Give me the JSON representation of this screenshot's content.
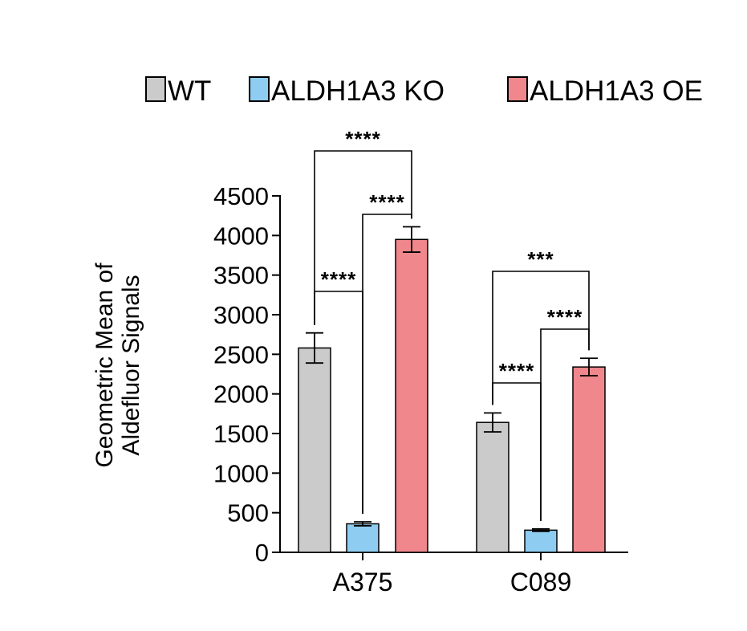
{
  "chart_data": {
    "type": "bar",
    "categories": [
      "A375",
      "C089"
    ],
    "ylabel": "Geometric Mean of\nAldefluor Signals",
    "ylabel_lines": [
      "Geometric Mean of",
      "Aldefluor Signals"
    ],
    "ylim": [
      0,
      4500
    ],
    "yticks": [
      0,
      500,
      1000,
      1500,
      2000,
      2500,
      3000,
      3500,
      4000,
      4500
    ],
    "legend_position": "top",
    "grid": false,
    "series": [
      {
        "name": "WT",
        "color": "#cbcbcb",
        "values": [
          2580,
          1640
        ],
        "errors": [
          190,
          120
        ]
      },
      {
        "name": "ALDH1A3 KO",
        "color": "#8ecdf1",
        "values": [
          360,
          280
        ],
        "errors": [
          25,
          15
        ]
      },
      {
        "name": "ALDH1A3 OE",
        "color": "#ef878c",
        "values": [
          3950,
          2340
        ],
        "errors": [
          160,
          110
        ]
      }
    ],
    "significance": [
      {
        "category": "A375",
        "from": "WT",
        "to": "ALDH1A3 KO",
        "label": "****"
      },
      {
        "category": "A375",
        "from": "ALDH1A3 KO",
        "to": "ALDH1A3 OE",
        "label": "****"
      },
      {
        "category": "A375",
        "from": "WT",
        "to": "ALDH1A3 OE",
        "label": "****"
      },
      {
        "category": "C089",
        "from": "WT",
        "to": "ALDH1A3 KO",
        "label": "****"
      },
      {
        "category": "C089",
        "from": "ALDH1A3 KO",
        "to": "ALDH1A3 OE",
        "label": "****"
      },
      {
        "category": "C089",
        "from": "WT",
        "to": "ALDH1A3 OE",
        "label": "***"
      }
    ]
  }
}
